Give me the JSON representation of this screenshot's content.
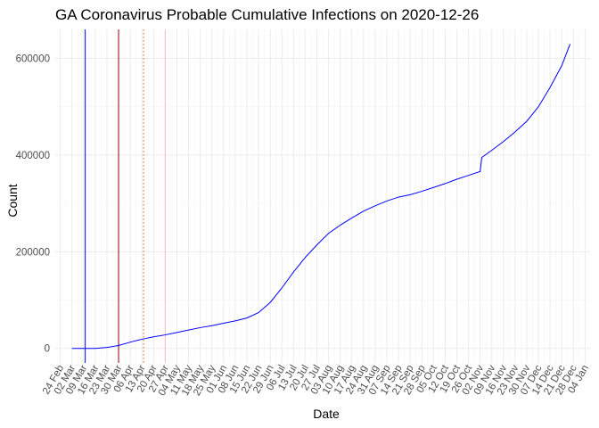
{
  "chart_data": {
    "type": "line",
    "title": "GA Coronavirus Probable Cumulative Infections on 2020-12-26",
    "xlabel": "Date",
    "ylabel": "Count",
    "xlim": [
      "2020-02-21",
      "2021-01-07"
    ],
    "ylim": [
      -30000,
      660000
    ],
    "x_tick_labels": [
      "24 Feb",
      "02 Mar",
      "09 Mar",
      "16 Mar",
      "23 Mar",
      "30 Mar",
      "06 Apr",
      "13 Apr",
      "20 Apr",
      "27 Apr",
      "04 May",
      "11 May",
      "18 May",
      "25 May",
      "01 Jun",
      "08 Jun",
      "15 Jun",
      "22 Jun",
      "29 Jun",
      "06 Jul",
      "13 Jul",
      "20 Jul",
      "27 Jul",
      "03 Aug",
      "10 Aug",
      "17 Aug",
      "24 Aug",
      "31 Aug",
      "07 Sep",
      "14 Sep",
      "21 Sep",
      "28 Sep",
      "05 Oct",
      "12 Oct",
      "19 Oct",
      "26 Oct",
      "02 Nov",
      "09 Nov",
      "16 Nov",
      "23 Nov",
      "30 Nov",
      "07 Dec",
      "14 Dec",
      "21 Dec",
      "28 Dec",
      "04 Jan"
    ],
    "x_tick_dates": [
      "2020-02-24",
      "2020-03-02",
      "2020-03-09",
      "2020-03-16",
      "2020-03-23",
      "2020-03-30",
      "2020-04-06",
      "2020-04-13",
      "2020-04-20",
      "2020-04-27",
      "2020-05-04",
      "2020-05-11",
      "2020-05-18",
      "2020-05-25",
      "2020-06-01",
      "2020-06-08",
      "2020-06-15",
      "2020-06-22",
      "2020-06-29",
      "2020-07-06",
      "2020-07-13",
      "2020-07-20",
      "2020-07-27",
      "2020-08-03",
      "2020-08-10",
      "2020-08-17",
      "2020-08-24",
      "2020-08-31",
      "2020-09-07",
      "2020-09-14",
      "2020-09-21",
      "2020-09-28",
      "2020-10-05",
      "2020-10-12",
      "2020-10-19",
      "2020-10-26",
      "2020-11-02",
      "2020-11-09",
      "2020-11-16",
      "2020-11-23",
      "2020-11-30",
      "2020-12-07",
      "2020-12-14",
      "2020-12-21",
      "2020-12-28",
      "2021-01-04"
    ],
    "y_ticks": [
      0,
      200000,
      400000,
      600000
    ],
    "y_tick_labels": [
      "0",
      "200000",
      "400000",
      "600000"
    ],
    "grid": true,
    "series": [
      {
        "color": "#0000ff",
        "x": [
          "2020-03-02",
          "2020-03-09",
          "2020-03-16",
          "2020-03-23",
          "2020-03-30",
          "2020-04-06",
          "2020-04-13",
          "2020-04-20",
          "2020-04-27",
          "2020-05-04",
          "2020-05-11",
          "2020-05-18",
          "2020-05-25",
          "2020-06-01",
          "2020-06-08",
          "2020-06-15",
          "2020-06-22",
          "2020-06-29",
          "2020-07-06",
          "2020-07-13",
          "2020-07-20",
          "2020-07-27",
          "2020-08-03",
          "2020-08-10",
          "2020-08-17",
          "2020-08-24",
          "2020-08-31",
          "2020-09-07",
          "2020-09-14",
          "2020-09-21",
          "2020-09-28",
          "2020-10-05",
          "2020-10-12",
          "2020-10-19",
          "2020-10-26",
          "2020-11-02",
          "2020-11-03",
          "2020-11-09",
          "2020-11-16",
          "2020-11-23",
          "2020-11-30",
          "2020-12-07",
          "2020-12-14",
          "2020-12-21",
          "2020-12-26"
        ],
        "y": [
          0,
          0,
          0,
          2000,
          6000,
          13000,
          19000,
          24000,
          28000,
          33000,
          38000,
          43000,
          47000,
          52000,
          57000,
          63000,
          74000,
          95000,
          125000,
          158000,
          188000,
          214000,
          238000,
          255000,
          270000,
          284000,
          295000,
          305000,
          313000,
          318000,
          325000,
          333000,
          341000,
          350000,
          358000,
          366000,
          395000,
          410000,
          428000,
          448000,
          470000,
          500000,
          540000,
          585000,
          630000
        ]
      }
    ],
    "vertical_lines": [
      {
        "x": "2020-03-10",
        "color": "#0000ff",
        "style": "solid"
      },
      {
        "x": "2020-03-30",
        "color": "#8b0000",
        "style": "solid"
      },
      {
        "x": "2020-04-14",
        "color": "#d2691e",
        "style": "dotted"
      },
      {
        "x": "2020-04-27",
        "color": "#ffb6c1",
        "style": "solid"
      }
    ]
  }
}
